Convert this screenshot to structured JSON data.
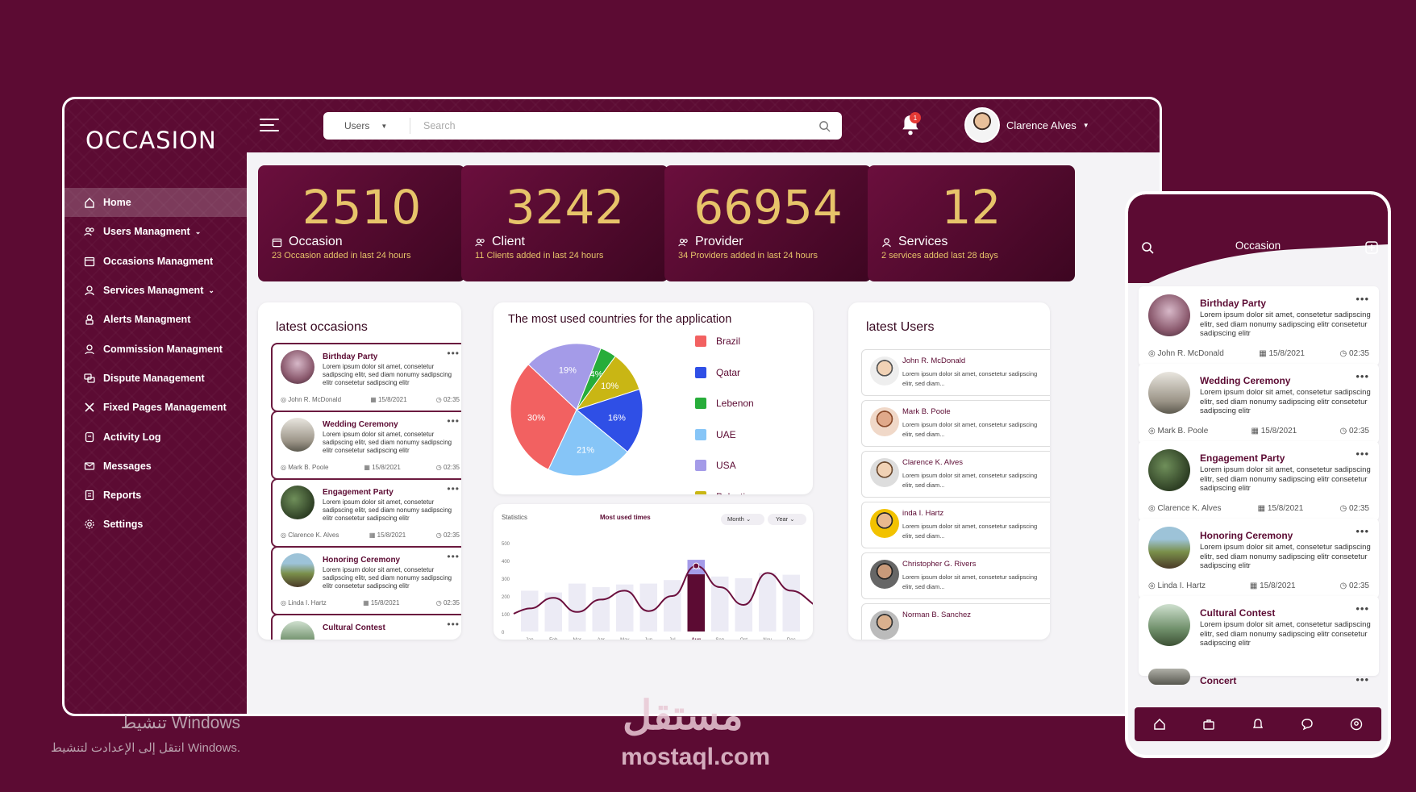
{
  "app": {
    "logo": "OCCASION"
  },
  "sidebar": {
    "items": [
      {
        "label": "Home",
        "active": true,
        "icon": "home-icon"
      },
      {
        "label": "Users Managment",
        "chevron": true,
        "icon": "users-icon"
      },
      {
        "label": "Occasions Managment",
        "icon": "calendar-icon"
      },
      {
        "label": "Services Managment",
        "chevron": true,
        "icon": "user-service-icon"
      },
      {
        "label": "Alerts Managment",
        "icon": "alert-user-icon"
      },
      {
        "label": "Commission Managment",
        "icon": "commission-icon"
      },
      {
        "label": "Dispute Management",
        "icon": "dispute-icon"
      },
      {
        "label": "Fixed Pages Management",
        "icon": "tools-icon"
      },
      {
        "label": "Activity Log",
        "icon": "log-icon"
      },
      {
        "label": "Messages",
        "icon": "mail-icon"
      },
      {
        "label": "Reports",
        "icon": "report-icon"
      },
      {
        "label": "Settings",
        "icon": "gear-icon"
      }
    ]
  },
  "header": {
    "search_scope": "Users",
    "search_placeholder": "Search",
    "notifications_count": "1",
    "user_name": "Clarence Alves"
  },
  "stats": [
    {
      "value": "2510",
      "label": "Occasion",
      "sub": "23 Occasion added in last 24 hours",
      "icon": "calendar-icon"
    },
    {
      "value": "3242",
      "label": "Client",
      "sub": "11 Clients added in last 24 hours",
      "icon": "users-icon"
    },
    {
      "value": "66954",
      "label": "Provider",
      "sub": "34 Providers added in last 24 hours",
      "icon": "users-icon"
    },
    {
      "value": "12",
      "label": "Services",
      "sub": "2 services added last 28 days",
      "icon": "user-icon"
    }
  ],
  "latest_occasions": {
    "title": "latest occasions",
    "lorem": "Lorem ipsum dolor sit amet, consetetur sadipscing elitr, sed diam nonumy sadipscing elitr consetetur sadipscing elitr",
    "items": [
      {
        "title": "Birthday Party",
        "author": "John R. McDonald",
        "date": "15/8/2021",
        "time": "02:35"
      },
      {
        "title": "Wedding Ceremony",
        "author": "Mark B. Poole",
        "date": "15/8/2021",
        "time": "02:35"
      },
      {
        "title": "Engagement Party",
        "author": "Clarence K. Alves",
        "date": "15/8/2021",
        "time": "02:35"
      },
      {
        "title": "Honoring Ceremony",
        "author": "Linda I. Hartz",
        "date": "15/8/2021",
        "time": "02:35"
      },
      {
        "title": "Cultural Contest",
        "author": "",
        "date": "",
        "time": ""
      }
    ]
  },
  "countries_chart": {
    "title": "The most used countries for the application",
    "chart_data": {
      "type": "pie",
      "title": "The most used countries for the application",
      "slices": [
        {
          "name": "Brazil",
          "value": 30,
          "color": "#f26161"
        },
        {
          "name": "USA",
          "value": 19,
          "color": "#a49be8"
        },
        {
          "name": "Lebenon",
          "value": 4,
          "color": "#27ad3a"
        },
        {
          "name": "Palestine",
          "value": 10,
          "color": "#c9b614"
        },
        {
          "name": "Qatar",
          "value": 16,
          "color": "#2f4fe6"
        },
        {
          "name": "UAE",
          "value": 21,
          "color": "#86c5f7"
        }
      ],
      "legend": [
        "Brazil",
        "Qatar",
        "Lebenon",
        "UAE",
        "USA",
        "Palestine"
      ]
    }
  },
  "stats_chart": {
    "label": "Statistics",
    "title": "Most used times",
    "filter_month": "Month",
    "filter_year": "Year",
    "chart_data": {
      "type": "bar",
      "title": "Most used times",
      "categories": [
        "Jan",
        "Feb",
        "Mar",
        "Apr",
        "May",
        "Jun",
        "Jul",
        "Aug",
        "Sep",
        "Oct",
        "Nov",
        "Dec"
      ],
      "values": [
        230,
        220,
        270,
        250,
        265,
        270,
        290,
        395,
        310,
        300,
        330,
        320
      ],
      "line_values": [
        130,
        190,
        110,
        180,
        230,
        115,
        200,
        370,
        250,
        150,
        330,
        230
      ],
      "highlight": {
        "category": "Aug",
        "label": "395"
      },
      "yticks": [
        "500",
        "400",
        "300",
        "200",
        "100",
        "0"
      ],
      "ylim": [
        0,
        500
      ]
    }
  },
  "latest_users": {
    "title": "latest Users",
    "lorem": "Lorem ipsum dolor sit amet, consetetur sadipscing elitr, sed diam...",
    "items": [
      {
        "name": "John R. McDonald"
      },
      {
        "name": "Mark B. Poole"
      },
      {
        "name": "Clarence K. Alves"
      },
      {
        "name": "inda I. Hartz"
      },
      {
        "name": "Christopher G. Rivers"
      },
      {
        "name": "Norman B. Sanchez"
      }
    ]
  },
  "phone": {
    "title": "Occasion",
    "lorem": "Lorem ipsum dolor sit amet, consetetur sadipscing elitr, sed diam nonumy sadipscing elitr consetetur sadipscing elitr",
    "items": [
      {
        "title": "Birthday Party",
        "author": "John R. McDonald",
        "date": "15/8/2021",
        "time": "02:35"
      },
      {
        "title": "Wedding Ceremony",
        "author": "Mark B. Poole",
        "date": "15/8/2021",
        "time": "02:35"
      },
      {
        "title": "Engagement Party",
        "author": "Clarence K. Alves",
        "date": "15/8/2021",
        "time": "02:35"
      },
      {
        "title": "Honoring Ceremony",
        "author": "Linda I. Hartz",
        "date": "15/8/2021",
        "time": "02:35"
      },
      {
        "title": "Cultural Contest",
        "author": "",
        "date": "",
        "time": ""
      },
      {
        "title": "Concert",
        "author": "",
        "date": "",
        "time": ""
      }
    ]
  },
  "watermark": {
    "arabic": "مستقل",
    "latin": "mostaql.com"
  },
  "activation": {
    "line1": "تنشيط Windows",
    "line2": "انتقل إلى الإعدادت لتنشيط Windows."
  }
}
